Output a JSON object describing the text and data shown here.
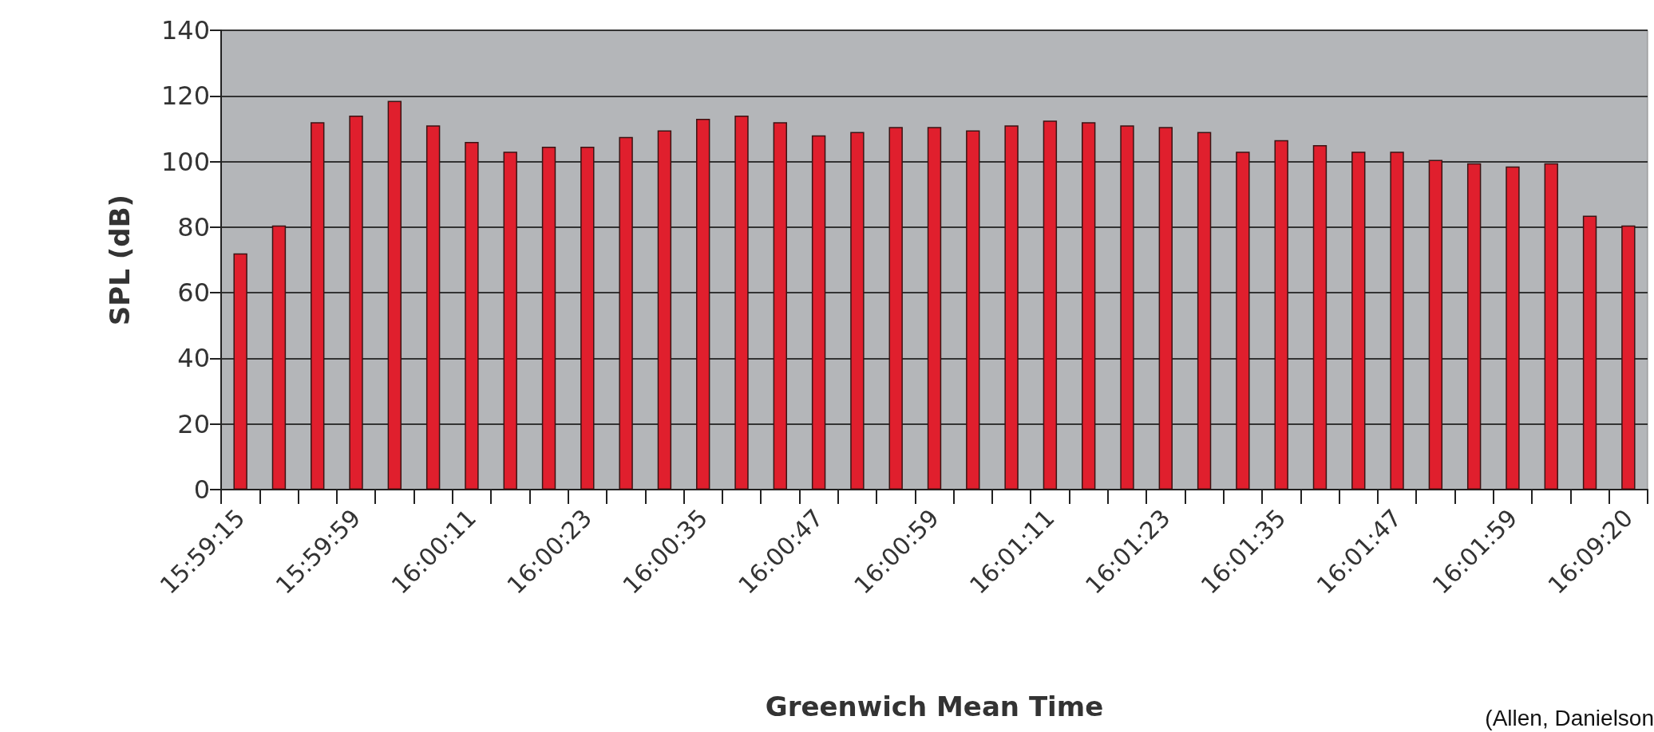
{
  "chart_data": {
    "type": "bar",
    "xlabel": "Greenwich Mean Time",
    "ylabel": "SPL (dB)",
    "categories": [
      "15:59:15",
      null,
      null,
      "15:59:59",
      null,
      null,
      "16:00:11",
      null,
      null,
      "16:00:23",
      null,
      null,
      "16:00:35",
      null,
      null,
      "16:00:47",
      null,
      null,
      "16:00:59",
      null,
      null,
      "16:01:11",
      null,
      null,
      "16:01:23",
      null,
      null,
      "16:01:35",
      null,
      null,
      "16:01:47",
      null,
      null,
      "16:01:59",
      null,
      null,
      "16:09:20"
    ],
    "values": [
      72,
      80.5,
      112,
      114,
      118.5,
      111,
      106,
      103,
      104.5,
      104.5,
      107.5,
      109.5,
      113,
      114,
      112,
      108,
      109,
      110.5,
      110.5,
      109.5,
      111,
      112.5,
      112,
      111,
      110.5,
      109,
      103,
      106.5,
      105,
      103,
      103,
      100.5,
      99.5,
      98.5,
      99.5,
      83.5,
      80.5
    ],
    "color": "#e01f2d",
    "ylim": [
      0,
      140
    ],
    "yticks": [
      0,
      20,
      40,
      60,
      80,
      100,
      120,
      140
    ],
    "grid": "y",
    "annotations": [
      "(Allen, Danielson"
    ]
  }
}
